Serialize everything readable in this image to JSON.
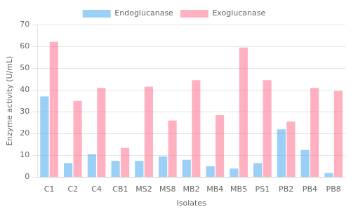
{
  "chart_data": {
    "type": "bar",
    "xlabel": "Isolates",
    "ylabel": "Enzyme activity (U/mL)",
    "categories": [
      "C1",
      "C2",
      "C4",
      "CB1",
      "MS2",
      "MS8",
      "MB2",
      "MB4",
      "MB5",
      "PS1",
      "PB2",
      "PB4",
      "PB8"
    ],
    "series": [
      {
        "name": "Endoglucanase",
        "values": [
          37,
          6.5,
          10.5,
          7.5,
          7.5,
          9.5,
          8,
          5,
          4,
          6.5,
          22,
          12.5,
          2
        ]
      },
      {
        "name": "Exoglucanase",
        "values": [
          62,
          35,
          41,
          13.5,
          41.5,
          26,
          44.5,
          28.5,
          59.5,
          44.5,
          25.5,
          41,
          39.5
        ]
      }
    ],
    "ylim": [
      0,
      70
    ],
    "yticks": [
      0,
      10,
      20,
      30,
      40,
      50,
      60,
      70
    ],
    "grid": true,
    "legend": "top"
  }
}
